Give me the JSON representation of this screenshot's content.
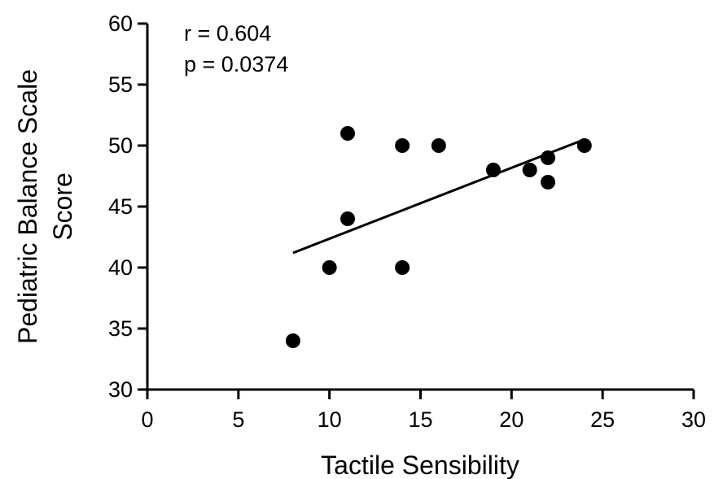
{
  "chart_data": {
    "type": "scatter",
    "xlabel": "Tactile Sensibility",
    "ylabel_lines": [
      "Pediatric Balance Scale",
      "Score"
    ],
    "xlim": [
      0,
      30
    ],
    "ylim": [
      30,
      60
    ],
    "x_ticks": [
      0,
      5,
      10,
      15,
      20,
      25,
      30
    ],
    "y_ticks": [
      30,
      35,
      40,
      45,
      50,
      55,
      60
    ],
    "grid": false,
    "legend": "none",
    "annotations": [
      "r = 0.604",
      "p = 0.0374"
    ],
    "points": [
      {
        "x": 8,
        "y": 34
      },
      {
        "x": 10,
        "y": 40
      },
      {
        "x": 11,
        "y": 44
      },
      {
        "x": 11,
        "y": 51
      },
      {
        "x": 14,
        "y": 40
      },
      {
        "x": 14,
        "y": 50
      },
      {
        "x": 16,
        "y": 50
      },
      {
        "x": 19,
        "y": 48
      },
      {
        "x": 21,
        "y": 48
      },
      {
        "x": 22,
        "y": 49
      },
      {
        "x": 22,
        "y": 47
      },
      {
        "x": 24,
        "y": 50
      }
    ],
    "fit_line": {
      "x": [
        8,
        24
      ],
      "y": [
        41.2,
        50.5
      ]
    },
    "colors": {
      "points": "#000000",
      "line": "#000000",
      "axes": "#000000"
    }
  }
}
